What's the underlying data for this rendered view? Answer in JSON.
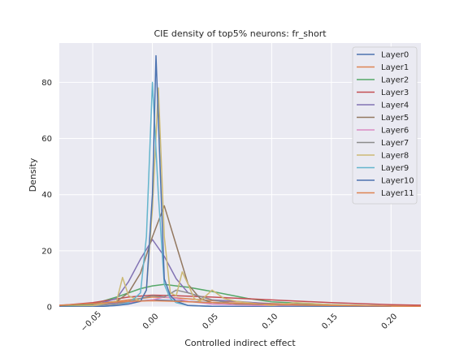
{
  "chart_data": {
    "type": "line",
    "title": "CIE density of top5% neurons: fr_short",
    "xlabel": "Controlled indirect effect",
    "ylabel": "Density",
    "xlim": [
      -0.078,
      0.225
    ],
    "ylim": [
      0,
      94
    ],
    "xticks": [
      -0.05,
      0.0,
      0.05,
      0.1,
      0.15,
      0.2
    ],
    "xtick_labels": [
      "−0.05",
      "0.00",
      "0.05",
      "0.10",
      "0.15",
      "0.20"
    ],
    "yticks": [
      0,
      20,
      40,
      60,
      80
    ],
    "ytick_labels": [
      "0",
      "20",
      "40",
      "60",
      "80"
    ],
    "grid": true,
    "legend_position": "top-right",
    "colors": [
      "#4c72b0",
      "#dd8452",
      "#55a868",
      "#c44e52",
      "#8172b3",
      "#937860",
      "#da8bc3",
      "#8c8c8c",
      "#ccb974",
      "#64b5cd",
      "#4c72b0",
      "#dd8452"
    ],
    "series": [
      {
        "name": "Layer0",
        "x": [
          -0.078,
          -0.05,
          -0.02,
          0.0,
          0.02,
          0.05,
          0.1,
          0.15,
          0.2,
          0.225
        ],
        "y": [
          0.3,
          0.8,
          1.8,
          2.5,
          2.2,
          1.5,
          0.8,
          0.4,
          0.2,
          0.1
        ]
      },
      {
        "name": "Layer1",
        "x": [
          -0.078,
          -0.05,
          -0.02,
          0.0,
          0.02,
          0.05,
          0.1,
          0.15,
          0.2,
          0.225
        ],
        "y": [
          0.5,
          1.0,
          2.5,
          3.5,
          3.2,
          2.2,
          1.2,
          0.6,
          0.3,
          0.2
        ]
      },
      {
        "name": "Layer2",
        "x": [
          -0.078,
          -0.05,
          -0.03,
          -0.01,
          0.0,
          0.01,
          0.02,
          0.03,
          0.05,
          0.08,
          0.1,
          0.15,
          0.2,
          0.225
        ],
        "y": [
          0.3,
          1.0,
          3.5,
          6.5,
          7.5,
          8.0,
          7.5,
          7.0,
          5.5,
          3.0,
          1.8,
          0.8,
          0.3,
          0.2
        ]
      },
      {
        "name": "Layer3",
        "x": [
          -0.078,
          -0.05,
          -0.02,
          0.0,
          0.02,
          0.05,
          0.1,
          0.15,
          0.2,
          0.225
        ],
        "y": [
          0.5,
          1.5,
          3.5,
          4.2,
          4.0,
          3.5,
          2.5,
          1.5,
          0.8,
          0.6
        ]
      },
      {
        "name": "Layer4",
        "x": [
          -0.078,
          -0.05,
          -0.03,
          -0.02,
          -0.01,
          0.0,
          0.01,
          0.02,
          0.03,
          0.05,
          0.07,
          0.1,
          0.15,
          0.2
        ],
        "y": [
          0.0,
          0.5,
          3.0,
          9.0,
          17.0,
          24.0,
          18.0,
          10.0,
          5.0,
          2.5,
          2.0,
          1.0,
          0.5,
          0.2
        ]
      },
      {
        "name": "Layer5",
        "x": [
          -0.078,
          -0.05,
          -0.03,
          -0.02,
          -0.01,
          0.0,
          0.01,
          0.02,
          0.03,
          0.04,
          0.05,
          0.08,
          0.1,
          0.15,
          0.2
        ],
        "y": [
          0.0,
          0.5,
          2.0,
          5.0,
          12.0,
          25.0,
          36.0,
          22.0,
          8.0,
          3.0,
          1.5,
          1.0,
          0.5,
          0.2,
          0.0
        ]
      },
      {
        "name": "Layer6",
        "x": [
          -0.078,
          -0.05,
          -0.02,
          0.0,
          0.01,
          0.02,
          0.03,
          0.05,
          0.1,
          0.15,
          0.2,
          0.225
        ],
        "y": [
          0.0,
          0.5,
          1.5,
          2.5,
          3.5,
          3.0,
          2.0,
          1.0,
          0.3,
          0.1,
          0.0,
          0.0
        ]
      },
      {
        "name": "Layer7",
        "x": [
          -0.078,
          -0.05,
          -0.03,
          -0.01,
          0.0,
          0.01,
          0.02,
          0.03,
          0.05,
          0.07,
          0.1,
          0.15,
          0.2
        ],
        "y": [
          0.0,
          0.5,
          1.0,
          3.0,
          4.0,
          3.5,
          6.0,
          5.0,
          2.5,
          1.0,
          0.8,
          0.3,
          0.0
        ]
      },
      {
        "name": "Layer8",
        "x": [
          -0.078,
          -0.05,
          -0.03,
          -0.025,
          -0.02,
          -0.01,
          -0.005,
          0.0,
          0.005,
          0.01,
          0.015,
          0.02,
          0.025,
          0.03,
          0.035,
          0.04,
          0.05,
          0.06,
          0.07,
          0.08,
          0.1,
          0.12,
          0.15,
          0.2,
          0.225
        ],
        "y": [
          0.0,
          0.5,
          2.0,
          10.5,
          4.0,
          2.0,
          6.0,
          35.0,
          78.0,
          25.0,
          5.0,
          4.0,
          12.5,
          8.0,
          3.0,
          2.0,
          6.0,
          3.0,
          2.0,
          1.5,
          0.5,
          1.5,
          0.8,
          0.3,
          0.0
        ]
      },
      {
        "name": "Layer9",
        "x": [
          -0.078,
          -0.05,
          -0.03,
          -0.02,
          -0.015,
          -0.01,
          -0.005,
          0.0,
          0.005,
          0.01,
          0.015,
          0.02,
          0.03,
          0.05,
          0.1,
          0.15,
          0.2
        ],
        "y": [
          0.0,
          0.0,
          0.5,
          1.5,
          3.0,
          5.0,
          25.0,
          80.0,
          40.0,
          8.0,
          3.0,
          1.5,
          0.5,
          0.2,
          0.0,
          0.0,
          0.0
        ]
      },
      {
        "name": "Layer10",
        "x": [
          -0.078,
          -0.05,
          -0.03,
          -0.02,
          -0.01,
          -0.005,
          0.0,
          0.003,
          0.006,
          0.01,
          0.015,
          0.02,
          0.03,
          0.05,
          0.1,
          0.15,
          0.2
        ],
        "y": [
          0.0,
          0.0,
          0.5,
          1.0,
          2.0,
          6.0,
          40.0,
          89.5,
          55.0,
          10.0,
          4.0,
          2.0,
          0.5,
          0.2,
          0.0,
          0.0,
          0.0
        ]
      },
      {
        "name": "Layer11",
        "x": [
          -0.078,
          -0.05,
          -0.02,
          0.0,
          0.02,
          0.05,
          0.1,
          0.15,
          0.2,
          0.225
        ],
        "y": [
          0.6,
          1.2,
          2.0,
          2.2,
          2.0,
          1.5,
          0.9,
          0.5,
          0.3,
          0.2
        ]
      }
    ]
  }
}
